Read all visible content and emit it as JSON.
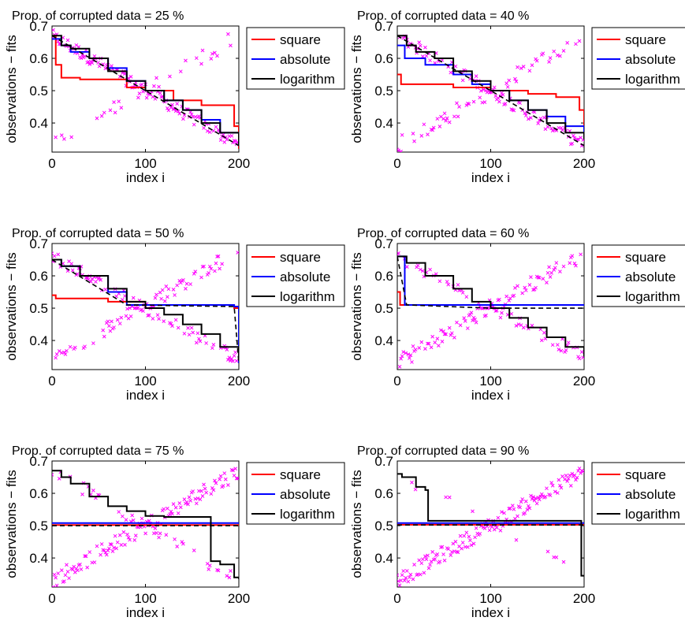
{
  "chart_data": [
    {
      "type": "line",
      "title": "Prop. of corrupted data = 25 %",
      "xlabel": "index i",
      "ylabel": "observations − fits",
      "xlim": [
        0,
        200
      ],
      "ylim": [
        0.31,
        0.7
      ],
      "xticks": [
        "0",
        "100",
        "200"
      ],
      "yticks": [
        "0.4",
        "0.5",
        "0.6",
        "0.7"
      ],
      "legend": {
        "placement": "outside-right-top",
        "entries": [
          "square",
          "absolute",
          "logarithm"
        ]
      },
      "series": [
        {
          "name": "square",
          "color": "#ff0000",
          "kind": "step",
          "x": [
            0,
            4,
            10,
            30,
            80,
            100,
            130,
            160,
            195,
            200
          ],
          "y": [
            0.67,
            0.58,
            0.54,
            0.535,
            0.51,
            0.5,
            0.47,
            0.455,
            0.39,
            0.32
          ]
        },
        {
          "name": "absolute",
          "color": "#0000ff",
          "kind": "step",
          "x": [
            0,
            10,
            20,
            40,
            60,
            80,
            100,
            120,
            140,
            160,
            180,
            200
          ],
          "y": [
            0.66,
            0.64,
            0.62,
            0.6,
            0.57,
            0.53,
            0.5,
            0.47,
            0.44,
            0.41,
            0.37,
            0.34
          ]
        },
        {
          "name": "logarithm",
          "color": "#000000",
          "kind": "step",
          "x": [
            0,
            10,
            20,
            40,
            60,
            80,
            100,
            120,
            140,
            160,
            180,
            200
          ],
          "y": [
            0.67,
            0.64,
            0.63,
            0.6,
            0.56,
            0.53,
            0.5,
            0.47,
            0.44,
            0.4,
            0.37,
            0.33
          ]
        },
        {
          "name": "reference",
          "color": "#000000",
          "kind": "dashed",
          "x": [
            0,
            200
          ],
          "y": [
            0.67,
            0.33
          ]
        },
        {
          "name": "observations",
          "color": "#ff00ff",
          "kind": "markers",
          "x": [
            0,
            200
          ],
          "y": [
            0.67,
            0.33
          ],
          "corrupted_x": [
            0,
            200
          ],
          "corrupted_y": [
            0.33,
            0.67
          ]
        }
      ]
    },
    {
      "type": "line",
      "title": "Prop. of corrupted data = 40 %",
      "xlabel": "index i",
      "ylabel": "observations − fits",
      "xlim": [
        0,
        200
      ],
      "ylim": [
        0.31,
        0.7
      ],
      "xticks": [
        "0",
        "100",
        "200"
      ],
      "yticks": [
        "0.4",
        "0.5",
        "0.6",
        "0.7"
      ],
      "legend": {
        "placement": "outside-right-top",
        "entries": [
          "square",
          "absolute",
          "logarithm"
        ]
      },
      "series": [
        {
          "name": "square",
          "color": "#ff0000",
          "kind": "step",
          "x": [
            0,
            4,
            60,
            100,
            140,
            170,
            195,
            200
          ],
          "y": [
            0.55,
            0.52,
            0.51,
            0.5,
            0.49,
            0.48,
            0.44,
            0.35
          ]
        },
        {
          "name": "absolute",
          "color": "#0000ff",
          "kind": "step",
          "x": [
            0,
            8,
            30,
            60,
            80,
            100,
            120,
            140,
            160,
            180,
            200
          ],
          "y": [
            0.64,
            0.6,
            0.58,
            0.55,
            0.52,
            0.5,
            0.47,
            0.44,
            0.42,
            0.39,
            0.35
          ]
        },
        {
          "name": "logarithm",
          "color": "#000000",
          "kind": "step",
          "x": [
            0,
            10,
            20,
            40,
            60,
            80,
            100,
            120,
            140,
            160,
            180,
            200
          ],
          "y": [
            0.67,
            0.64,
            0.62,
            0.6,
            0.56,
            0.53,
            0.5,
            0.47,
            0.44,
            0.4,
            0.37,
            0.35
          ]
        },
        {
          "name": "reference",
          "color": "#000000",
          "kind": "dashed",
          "x": [
            0,
            200
          ],
          "y": [
            0.67,
            0.33
          ]
        },
        {
          "name": "observations",
          "color": "#ff00ff",
          "kind": "markers",
          "x": [
            0,
            200
          ],
          "y": [
            0.67,
            0.33
          ],
          "corrupted_x": [
            0,
            200
          ],
          "corrupted_y": [
            0.33,
            0.67
          ]
        }
      ]
    },
    {
      "type": "line",
      "title": "Prop. of corrupted data = 50 %",
      "xlabel": "index i",
      "ylabel": "observations − fits",
      "xlim": [
        0,
        200
      ],
      "ylim": [
        0.31,
        0.7
      ],
      "xticks": [
        "0",
        "100",
        "200"
      ],
      "yticks": [
        "0.4",
        "0.5",
        "0.6",
        "0.7"
      ],
      "legend": {
        "placement": "outside-right-top",
        "entries": [
          "square",
          "absolute",
          "logarithm"
        ]
      },
      "series": [
        {
          "name": "square",
          "color": "#ff0000",
          "kind": "step",
          "x": [
            0,
            4,
            60,
            100,
            140,
            195,
            200
          ],
          "y": [
            0.54,
            0.53,
            0.52,
            0.51,
            0.51,
            0.5,
            0.41
          ]
        },
        {
          "name": "absolute",
          "color": "#0000ff",
          "kind": "step",
          "x": [
            0,
            10,
            30,
            60,
            80,
            195,
            200
          ],
          "y": [
            0.65,
            0.63,
            0.6,
            0.55,
            0.51,
            0.505,
            0.33
          ]
        },
        {
          "name": "logarithm",
          "color": "#000000",
          "kind": "step",
          "x": [
            0,
            10,
            30,
            60,
            80,
            100,
            120,
            140,
            160,
            180,
            200
          ],
          "y": [
            0.65,
            0.63,
            0.6,
            0.56,
            0.52,
            0.5,
            0.48,
            0.45,
            0.42,
            0.38,
            0.34
          ]
        },
        {
          "name": "reference",
          "color": "#000000",
          "kind": "dashed",
          "x": [
            0,
            80,
            195,
            200
          ],
          "y": [
            0.65,
            0.51,
            0.505,
            0.33
          ]
        },
        {
          "name": "observations",
          "color": "#ff00ff",
          "kind": "markers",
          "x": [
            0,
            200
          ],
          "y": [
            0.66,
            0.34
          ],
          "corrupted_x": [
            0,
            200
          ],
          "corrupted_y": [
            0.34,
            0.68
          ]
        }
      ]
    },
    {
      "type": "line",
      "title": "Prop. of corrupted data = 60 %",
      "xlabel": "index i",
      "ylabel": "observations − fits",
      "xlim": [
        0,
        200
      ],
      "ylim": [
        0.31,
        0.7
      ],
      "xticks": [
        "0",
        "100",
        "200"
      ],
      "yticks": [
        "0.4",
        "0.5",
        "0.6",
        "0.7"
      ],
      "legend": {
        "placement": "outside-right-top",
        "entries": [
          "square",
          "absolute",
          "logarithm"
        ]
      },
      "series": [
        {
          "name": "square",
          "color": "#ff0000",
          "kind": "step",
          "x": [
            0,
            3,
            200
          ],
          "y": [
            0.55,
            0.51,
            0.51
          ]
        },
        {
          "name": "absolute",
          "color": "#0000ff",
          "kind": "step",
          "x": [
            0,
            8,
            200
          ],
          "y": [
            0.66,
            0.51,
            0.51
          ]
        },
        {
          "name": "logarithm",
          "color": "#000000",
          "kind": "step",
          "x": [
            0,
            10,
            30,
            60,
            80,
            100,
            120,
            140,
            160,
            180,
            200
          ],
          "y": [
            0.66,
            0.64,
            0.6,
            0.56,
            0.52,
            0.5,
            0.47,
            0.44,
            0.41,
            0.38,
            0.35
          ]
        },
        {
          "name": "reference",
          "color": "#000000",
          "kind": "dashed",
          "x": [
            0,
            10,
            100,
            200
          ],
          "y": [
            0.66,
            0.51,
            0.5,
            0.5
          ]
        },
        {
          "name": "observations",
          "color": "#ff00ff",
          "kind": "markers",
          "x": [
            0,
            200
          ],
          "y": [
            0.66,
            0.35
          ],
          "corrupted_x": [
            0,
            200
          ],
          "corrupted_y": [
            0.33,
            0.67
          ]
        }
      ]
    },
    {
      "type": "line",
      "title": "Prop. of corrupted data = 75 %",
      "xlabel": "index i",
      "ylabel": "observations − fits",
      "xlim": [
        0,
        200
      ],
      "ylim": [
        0.31,
        0.7
      ],
      "xticks": [
        "0",
        "100",
        "200"
      ],
      "yticks": [
        "0.4",
        "0.5",
        "0.6",
        "0.7"
      ],
      "legend": {
        "placement": "outside-right-top",
        "entries": [
          "square",
          "absolute",
          "logarithm"
        ]
      },
      "series": [
        {
          "name": "square",
          "color": "#ff0000",
          "kind": "step",
          "x": [
            0,
            200
          ],
          "y": [
            0.502,
            0.502
          ]
        },
        {
          "name": "absolute",
          "color": "#0000ff",
          "kind": "step",
          "x": [
            0,
            200
          ],
          "y": [
            0.508,
            0.508
          ]
        },
        {
          "name": "logarithm",
          "color": "#000000",
          "kind": "step",
          "x": [
            0,
            10,
            20,
            40,
            60,
            80,
            100,
            120,
            165,
            170,
            180,
            195,
            200
          ],
          "y": [
            0.67,
            0.65,
            0.63,
            0.59,
            0.56,
            0.545,
            0.53,
            0.527,
            0.527,
            0.39,
            0.38,
            0.34,
            0.335
          ]
        },
        {
          "name": "reference",
          "color": "#000000",
          "kind": "dashed",
          "x": [
            0,
            200
          ],
          "y": [
            0.5,
            0.5
          ]
        },
        {
          "name": "observations",
          "color": "#ff00ff",
          "kind": "markers",
          "x": [
            0,
            200
          ],
          "y": [
            0.67,
            0.33
          ],
          "corrupted_x": [
            0,
            200
          ],
          "corrupted_y": [
            0.33,
            0.67
          ]
        }
      ]
    },
    {
      "type": "line",
      "title": "Prop. of corrupted data = 90 %",
      "xlabel": "index i",
      "ylabel": "observations − fits",
      "xlim": [
        0,
        200
      ],
      "ylim": [
        0.31,
        0.7
      ],
      "xticks": [
        "0",
        "100",
        "200"
      ],
      "yticks": [
        "0.4",
        "0.5",
        "0.6",
        "0.7"
      ],
      "legend": {
        "placement": "outside-right-top",
        "entries": [
          "square",
          "absolute",
          "logarithm"
        ]
      },
      "series": [
        {
          "name": "square",
          "color": "#ff0000",
          "kind": "step",
          "x": [
            0,
            200
          ],
          "y": [
            0.503,
            0.503
          ]
        },
        {
          "name": "absolute",
          "color": "#0000ff",
          "kind": "step",
          "x": [
            0,
            200
          ],
          "y": [
            0.508,
            0.508
          ]
        },
        {
          "name": "logarithm",
          "color": "#000000",
          "kind": "step",
          "x": [
            0,
            5,
            20,
            30,
            33,
            195,
            197,
            200
          ],
          "y": [
            0.66,
            0.65,
            0.62,
            0.61,
            0.515,
            0.515,
            0.345,
            0.345
          ]
        },
        {
          "name": "reference",
          "color": "#000000",
          "kind": "dashed",
          "x": [
            0,
            200
          ],
          "y": [
            0.502,
            0.502
          ]
        },
        {
          "name": "observations",
          "color": "#ff00ff",
          "kind": "markers",
          "x": [
            0,
            200
          ],
          "y": [
            0.66,
            0.34
          ],
          "corrupted_x": [
            0,
            200
          ],
          "corrupted_y": [
            0.33,
            0.67
          ]
        }
      ]
    }
  ]
}
